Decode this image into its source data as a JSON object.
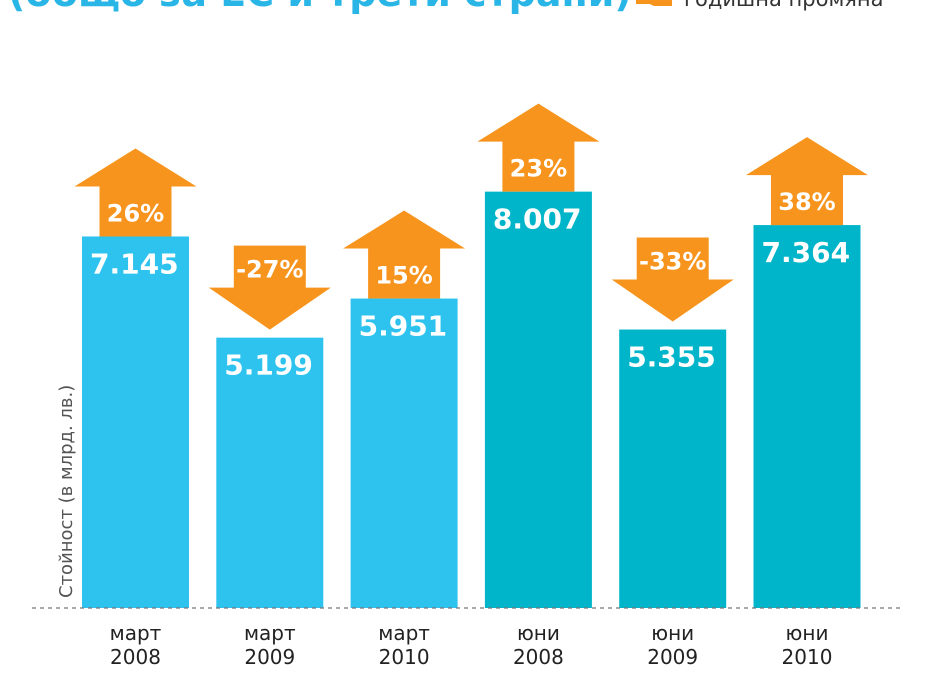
{
  "header": {
    "title": "(общо за ЕС и трети страни)",
    "legend_label": "годишна промяна"
  },
  "colors": {
    "title": "#29b6e6",
    "march_bars": "#2ec3ee",
    "june_bars": "#00b5c9",
    "arrow": "#f7941d",
    "baseline": "#777777"
  },
  "chart_data": {
    "type": "bar",
    "title": "(общо за ЕС и трети страни)",
    "xlabel": "",
    "ylabel": "Стойност (в млрд. лв.)",
    "ylim": [
      0,
      8.5
    ],
    "grid": false,
    "legend_position": "top-right",
    "categories": [
      [
        "март",
        "2008"
      ],
      [
        "март",
        "2009"
      ],
      [
        "март",
        "2010"
      ],
      [
        "юни",
        "2008"
      ],
      [
        "юни",
        "2009"
      ],
      [
        "юни",
        "2010"
      ]
    ],
    "values": [
      7.145,
      5.199,
      5.951,
      8.007,
      5.355,
      7.364
    ],
    "value_labels": [
      "7.145",
      "5.199",
      "5.951",
      "8.007",
      "5.355",
      "7.364"
    ],
    "annual_change": [
      26,
      -27,
      15,
      23,
      -33,
      38
    ],
    "annual_change_labels": [
      "26%",
      "-27%",
      "15%",
      "23%",
      "-33%",
      "38%"
    ],
    "series_group": [
      "march",
      "march",
      "march",
      "june",
      "june",
      "june"
    ]
  }
}
